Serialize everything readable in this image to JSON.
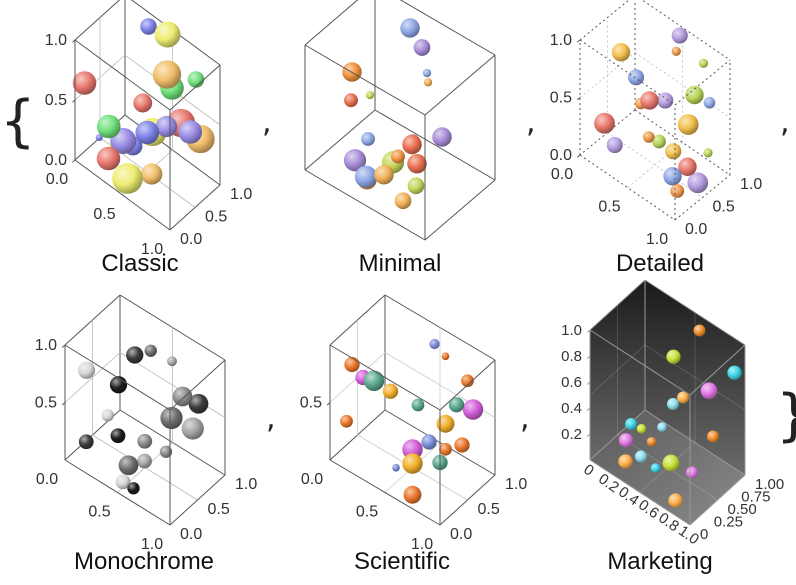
{
  "braces": {
    "open": "{",
    "close": "}"
  },
  "separator": ",",
  "chart_data": [
    {
      "type": "scatter",
      "title": "Classic",
      "style": "classic",
      "xlim": [
        0,
        1
      ],
      "ylim": [
        0,
        1
      ],
      "zlim": [
        0,
        1
      ],
      "x_ticks": [
        "0.0",
        "0.5",
        "1.0"
      ],
      "y_ticks": [
        "0.0",
        "0.5",
        "1.0"
      ],
      "z_ticks": [
        "0.0",
        "0.5",
        "1.0"
      ],
      "point_colors": [
        "#e9786e",
        "#7e83e8",
        "#eded72",
        "#f2bf6b",
        "#6fe07b",
        "#9a8ee6"
      ],
      "points": [
        {
          "x": 0.1,
          "y": 0.0,
          "z": 0.7,
          "r": 0.1
        },
        {
          "x": 0.3,
          "y": 0.9,
          "z": 0.95,
          "r": 0.07
        },
        {
          "x": 0.5,
          "y": 0.9,
          "z": 1.0,
          "r": 0.11
        },
        {
          "x": 0.6,
          "y": 0.7,
          "z": 0.8,
          "r": 0.12
        },
        {
          "x": 0.6,
          "y": 0.8,
          "z": 0.65,
          "r": 0.1
        },
        {
          "x": 0.7,
          "y": 0.5,
          "z": 0.5,
          "r": 0.09
        },
        {
          "x": 0.8,
          "y": 0.6,
          "z": 0.55,
          "r": 0.12
        },
        {
          "x": 0.55,
          "y": 0.4,
          "z": 0.4,
          "r": 0.1
        },
        {
          "x": 0.5,
          "y": 0.6,
          "z": 0.3,
          "r": 0.12
        },
        {
          "x": 0.65,
          "y": 0.3,
          "z": 0.15,
          "r": 0.09
        },
        {
          "x": 0.25,
          "y": 0.2,
          "z": 0.35,
          "r": 0.1
        },
        {
          "x": 0.35,
          "y": 0.3,
          "z": 0.25,
          "r": 0.11
        },
        {
          "x": 0.3,
          "y": 0.1,
          "z": 0.15,
          "r": 0.1
        },
        {
          "x": 0.15,
          "y": 0.2,
          "z": 0.2,
          "r": 0.03
        },
        {
          "x": 0.5,
          "y": 0.1,
          "z": 0.1,
          "r": 0.13
        },
        {
          "x": 0.9,
          "y": 0.8,
          "z": 0.4,
          "r": 0.12
        },
        {
          "x": 0.8,
          "y": 0.9,
          "z": 0.8,
          "r": 0.07
        },
        {
          "x": 0.95,
          "y": 0.5,
          "z": 0.6,
          "r": 0.1
        },
        {
          "x": 0.45,
          "y": 0.5,
          "z": 0.55,
          "r": 0.08
        },
        {
          "x": 0.4,
          "y": 0.4,
          "z": 0.2,
          "r": 0.08
        },
        {
          "x": 0.2,
          "y": 0.4,
          "z": 0.1,
          "r": 0.04
        }
      ]
    },
    {
      "type": "scatter",
      "title": "Minimal",
      "style": "minimal",
      "xlim": [
        0,
        1
      ],
      "ylim": [
        0,
        1
      ],
      "zlim": [
        0,
        1
      ],
      "point_colors": [
        "#8fa8e6",
        "#a98ed9",
        "#f2943f",
        "#e96f4f",
        "#c6d65a",
        "#f2b35a"
      ],
      "points": [
        {
          "x": 0.35,
          "y": 0.9,
          "z": 0.9,
          "r": 0.07
        },
        {
          "x": 0.45,
          "y": 0.9,
          "z": 0.8,
          "r": 0.06
        },
        {
          "x": 0.1,
          "y": 0.5,
          "z": 0.6,
          "r": 0.07
        },
        {
          "x": 0.15,
          "y": 0.4,
          "z": 0.45,
          "r": 0.05
        },
        {
          "x": 0.25,
          "y": 0.5,
          "z": 0.5,
          "r": 0.03
        },
        {
          "x": 0.5,
          "y": 0.9,
          "z": 0.55,
          "r": 0.03
        },
        {
          "x": 0.55,
          "y": 0.8,
          "z": 0.7,
          "r": 0.03
        },
        {
          "x": 0.85,
          "y": 0.5,
          "z": 0.5,
          "r": 0.07
        },
        {
          "x": 0.6,
          "y": 0.3,
          "z": 0.3,
          "r": 0.05
        },
        {
          "x": 0.6,
          "y": 0.5,
          "z": 0.3,
          "r": 0.07
        },
        {
          "x": 0.5,
          "y": 0.4,
          "z": 0.15,
          "r": 0.08
        },
        {
          "x": 0.6,
          "y": 0.1,
          "z": 0.25,
          "r": 0.07
        },
        {
          "x": 0.45,
          "y": 0.1,
          "z": 0.15,
          "r": 0.08
        },
        {
          "x": 0.3,
          "y": 0.2,
          "z": 0.15,
          "r": 0.08
        },
        {
          "x": 0.4,
          "y": 0.2,
          "z": 0.05,
          "r": 0.07
        },
        {
          "x": 0.7,
          "y": 0.4,
          "z": 0.25,
          "r": 0.07
        },
        {
          "x": 0.75,
          "y": 0.3,
          "z": 0.15,
          "r": 0.06
        },
        {
          "x": 0.7,
          "y": 0.2,
          "z": 0.05,
          "r": 0.06
        },
        {
          "x": 0.35,
          "y": 0.3,
          "z": 0.3,
          "r": 0.05
        },
        {
          "x": 0.55,
          "y": 0.6,
          "z": 0.25,
          "r": 0.05
        }
      ]
    },
    {
      "type": "scatter",
      "title": "Detailed",
      "style": "detailed",
      "xlim": [
        0,
        1
      ],
      "ylim": [
        0,
        1
      ],
      "zlim": [
        0,
        1
      ],
      "x_ticks": [
        "0.0",
        "0.5",
        "1.0"
      ],
      "y_ticks": [
        "0.0",
        "0.5",
        "1.0"
      ],
      "z_ticks": [
        "0.0",
        "0.5",
        "1.0"
      ],
      "point_colors": [
        "#b59de0",
        "#f29a4d",
        "#b8d65a",
        "#f2c04d",
        "#8fa8e6",
        "#e9786e"
      ],
      "points": [
        {
          "x": 0.5,
          "y": 0.95,
          "z": 0.95,
          "r": 0.07
        },
        {
          "x": 0.55,
          "y": 0.8,
          "z": 0.9,
          "r": 0.04
        },
        {
          "x": 0.75,
          "y": 0.95,
          "z": 0.85,
          "r": 0.04
        },
        {
          "x": 0.2,
          "y": 0.4,
          "z": 0.85,
          "r": 0.08
        },
        {
          "x": 0.3,
          "y": 0.5,
          "z": 0.65,
          "r": 0.07
        },
        {
          "x": 0.5,
          "y": 0.4,
          "z": 0.6,
          "r": 0.08
        },
        {
          "x": 0.55,
          "y": 0.6,
          "z": 0.55,
          "r": 0.07
        },
        {
          "x": 0.35,
          "y": 0.5,
          "z": 0.45,
          "r": 0.05
        },
        {
          "x": 0.8,
          "y": 0.7,
          "z": 0.7,
          "r": 0.08
        },
        {
          "x": 0.85,
          "y": 0.5,
          "z": 0.55,
          "r": 0.09
        },
        {
          "x": 0.9,
          "y": 0.8,
          "z": 0.65,
          "r": 0.05
        },
        {
          "x": 0.2,
          "y": 0.1,
          "z": 0.35,
          "r": 0.09
        },
        {
          "x": 0.25,
          "y": 0.2,
          "z": 0.15,
          "r": 0.07
        },
        {
          "x": 0.55,
          "y": 0.3,
          "z": 0.35,
          "r": 0.05
        },
        {
          "x": 0.6,
          "y": 0.4,
          "z": 0.3,
          "r": 0.06
        },
        {
          "x": 0.75,
          "y": 0.4,
          "z": 0.3,
          "r": 0.07
        },
        {
          "x": 0.8,
          "y": 0.3,
          "z": 0.15,
          "r": 0.08
        },
        {
          "x": 0.9,
          "y": 0.4,
          "z": 0.25,
          "r": 0.08
        },
        {
          "x": 0.95,
          "y": 0.5,
          "z": 0.1,
          "r": 0.09
        },
        {
          "x": 0.85,
          "y": 0.3,
          "z": 0.05,
          "r": 0.06
        },
        {
          "x": 1.0,
          "y": 0.6,
          "z": 0.35,
          "r": 0.04
        }
      ]
    },
    {
      "type": "scatter",
      "title": "Monochrome",
      "style": "monochrome",
      "xlim": [
        0,
        1
      ],
      "ylim": [
        0,
        1
      ],
      "zlim": [
        0,
        1
      ],
      "x_ticks": [
        "0.0",
        "0.5",
        "1.0"
      ],
      "y_ticks": [
        "0.0",
        "0.5",
        "1.0"
      ],
      "z_ticks": [
        "0.5",
        "1.0"
      ],
      "point_colors": [
        "#3a3a3a",
        "#6e6e6e",
        "#a5a5a5",
        "#d8d8d8",
        "#1c1c1c",
        "#8a8a8a"
      ],
      "points": [
        {
          "x": 0.35,
          "y": 0.6,
          "z": 0.85,
          "r": 0.07
        },
        {
          "x": 0.45,
          "y": 0.7,
          "z": 0.9,
          "r": 0.05
        },
        {
          "x": 0.6,
          "y": 0.8,
          "z": 0.85,
          "r": 0.04
        },
        {
          "x": 0.1,
          "y": 0.2,
          "z": 0.75,
          "r": 0.07
        },
        {
          "x": 0.3,
          "y": 0.4,
          "z": 0.65,
          "r": 0.07
        },
        {
          "x": 0.7,
          "y": 0.8,
          "z": 0.6,
          "r": 0.08
        },
        {
          "x": 0.8,
          "y": 0.9,
          "z": 0.55,
          "r": 0.08
        },
        {
          "x": 0.7,
          "y": 0.6,
          "z": 0.5,
          "r": 0.09
        },
        {
          "x": 0.85,
          "y": 0.7,
          "z": 0.45,
          "r": 0.09
        },
        {
          "x": 0.25,
          "y": 0.3,
          "z": 0.4,
          "r": 0.05
        },
        {
          "x": 0.4,
          "y": 0.2,
          "z": 0.35,
          "r": 0.06
        },
        {
          "x": 0.55,
          "y": 0.4,
          "z": 0.3,
          "r": 0.06
        },
        {
          "x": 0.15,
          "y": 0.1,
          "z": 0.2,
          "r": 0.06
        },
        {
          "x": 0.5,
          "y": 0.2,
          "z": 0.15,
          "r": 0.08
        },
        {
          "x": 0.6,
          "y": 0.3,
          "z": 0.2,
          "r": 0.06
        },
        {
          "x": 0.5,
          "y": 0.1,
          "z": 0.05,
          "r": 0.06
        },
        {
          "x": 0.6,
          "y": 0.1,
          "z": 0.05,
          "r": 0.05
        },
        {
          "x": 0.7,
          "y": 0.5,
          "z": 0.25,
          "r": 0.05
        }
      ]
    },
    {
      "type": "scatter",
      "title": "Scientific",
      "style": "scientific",
      "xlim": [
        0,
        1
      ],
      "ylim": [
        0,
        1
      ],
      "zlim": [
        0,
        1
      ],
      "x_ticks": [
        "0.0",
        "0.5",
        "1.0"
      ],
      "y_ticks": [
        "0.0",
        "0.5",
        "1.0"
      ],
      "z_ticks": [
        "0.5"
      ],
      "point_colors": [
        "#e9782b",
        "#5ba88e",
        "#d35fd9",
        "#f2b02b",
        "#7a8fd9",
        "#e9782b"
      ],
      "points": [
        {
          "x": 0.1,
          "y": 0.2,
          "z": 0.8,
          "r": 0.06
        },
        {
          "x": 0.25,
          "y": 0.3,
          "z": 0.7,
          "r": 0.08
        },
        {
          "x": 0.1,
          "y": 0.4,
          "z": 0.6,
          "r": 0.06
        },
        {
          "x": 0.3,
          "y": 0.5,
          "z": 0.55,
          "r": 0.06
        },
        {
          "x": 0.5,
          "y": 0.9,
          "z": 0.9,
          "r": 0.04
        },
        {
          "x": 0.6,
          "y": 0.9,
          "z": 0.85,
          "r": 0.03
        },
        {
          "x": 0.8,
          "y": 0.9,
          "z": 0.75,
          "r": 0.05
        },
        {
          "x": 0.85,
          "y": 0.6,
          "z": 0.7,
          "r": 0.06
        },
        {
          "x": 0.9,
          "y": 0.8,
          "z": 0.6,
          "r": 0.08
        },
        {
          "x": 0.8,
          "y": 0.5,
          "z": 0.55,
          "r": 0.07
        },
        {
          "x": 0.75,
          "y": 0.3,
          "z": 0.45,
          "r": 0.06
        },
        {
          "x": 0.85,
          "y": 0.4,
          "z": 0.4,
          "r": 0.05
        },
        {
          "x": 0.1,
          "y": 0.1,
          "z": 0.35,
          "r": 0.05
        },
        {
          "x": 0.5,
          "y": 0.6,
          "z": 0.5,
          "r": 0.05
        },
        {
          "x": 0.6,
          "y": 0.3,
          "z": 0.3,
          "r": 0.08
        },
        {
          "x": 0.65,
          "y": 0.2,
          "z": 0.25,
          "r": 0.08
        },
        {
          "x": 0.55,
          "y": 0.1,
          "z": 0.2,
          "r": 0.03
        },
        {
          "x": 0.7,
          "y": 0.1,
          "z": 0.05,
          "r": 0.07
        },
        {
          "x": 0.95,
          "y": 0.5,
          "z": 0.45,
          "r": 0.06
        },
        {
          "x": 0.9,
          "y": 0.2,
          "z": 0.4,
          "r": 0.06
        }
      ]
    },
    {
      "type": "scatter",
      "title": "Marketing",
      "style": "marketing",
      "xlim": [
        0,
        1
      ],
      "ylim": [
        0,
        1
      ],
      "zlim": [
        0,
        1
      ],
      "x_ticks": [
        "0",
        "0.2",
        "0.4",
        "0.6",
        "0.8",
        "1.0"
      ],
      "y_ticks": [
        "0",
        "0.25",
        "0.50",
        "0.75",
        "1.00"
      ],
      "z_ticks": [
        "0.2",
        "0.4",
        "0.6",
        "0.8",
        "1.0"
      ],
      "point_colors": [
        "#f0902c",
        "#3fd6e8",
        "#c9e23a",
        "#e47ae6",
        "#ffb24d",
        "#8fe2f0"
      ],
      "points": [
        {
          "x": 0.6,
          "y": 0.9,
          "z": 0.95,
          "r": 0.05
        },
        {
          "x": 0.95,
          "y": 0.9,
          "z": 0.8,
          "r": 0.06
        },
        {
          "x": 0.45,
          "y": 0.7,
          "z": 0.75,
          "r": 0.06
        },
        {
          "x": 0.75,
          "y": 0.8,
          "z": 0.6,
          "r": 0.07
        },
        {
          "x": 0.6,
          "y": 0.6,
          "z": 0.55,
          "r": 0.05
        },
        {
          "x": 0.5,
          "y": 0.6,
          "z": 0.45,
          "r": 0.05
        },
        {
          "x": 0.9,
          "y": 0.6,
          "z": 0.4,
          "r": 0.05
        },
        {
          "x": 0.3,
          "y": 0.2,
          "z": 0.35,
          "r": 0.05
        },
        {
          "x": 0.35,
          "y": 0.3,
          "z": 0.3,
          "r": 0.04
        },
        {
          "x": 0.25,
          "y": 0.2,
          "z": 0.2,
          "r": 0.06
        },
        {
          "x": 0.3,
          "y": 0.1,
          "z": 0.1,
          "r": 0.06
        },
        {
          "x": 0.4,
          "y": 0.2,
          "z": 0.15,
          "r": 0.05
        },
        {
          "x": 0.45,
          "y": 0.3,
          "z": 0.25,
          "r": 0.04
        },
        {
          "x": 0.6,
          "y": 0.1,
          "z": 0.2,
          "r": 0.04
        },
        {
          "x": 0.7,
          "y": 0.2,
          "z": 0.25,
          "r": 0.07
        },
        {
          "x": 0.8,
          "y": 0.4,
          "z": 0.15,
          "r": 0.05
        },
        {
          "x": 0.8,
          "y": 0.1,
          "z": 0.05,
          "r": 0.06
        },
        {
          "x": 0.5,
          "y": 0.4,
          "z": 0.35,
          "r": 0.04
        }
      ]
    }
  ]
}
